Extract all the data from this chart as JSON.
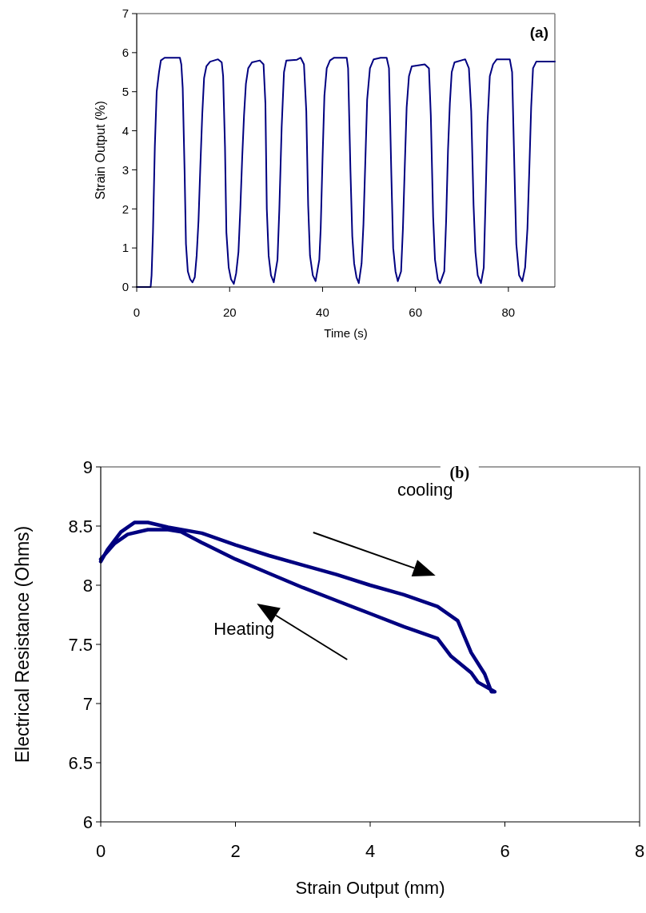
{
  "chart_data": [
    {
      "type": "line",
      "title": "(a)",
      "xlabel": "Time (s)",
      "ylabel": "Strain Output (%)",
      "xlim": [
        0,
        90
      ],
      "xticks": [
        0,
        20,
        40,
        60,
        80
      ],
      "ylim": [
        0,
        7
      ],
      "yticks": [
        0,
        1,
        2,
        3,
        4,
        5,
        6,
        7
      ],
      "grid": false,
      "marker": "none",
      "line_style": "solid",
      "series": [
        {
          "color": "#000080",
          "x": [
            0,
            3.0,
            3.2,
            3.5,
            3.9,
            4.3,
            4.8,
            5.2,
            6,
            9.3,
            9.6,
            9.9,
            10.3,
            10.6,
            11,
            11.5,
            12,
            12.5,
            12.9,
            13.3,
            13.7,
            14.1,
            14.5,
            15,
            15.8,
            17.5,
            18.3,
            18.6,
            19,
            19.3,
            19.8,
            20.3,
            20.9,
            21.4,
            21.9,
            22.3,
            22.7,
            23.1,
            23.5,
            24.0,
            24.8,
            26.5,
            27.3,
            27.7,
            28.0,
            28.4,
            28.9,
            29.5,
            30.3,
            30.7,
            31.2,
            31.7,
            32.2,
            34.5,
            35.3,
            36,
            36.5,
            36.9,
            37.3,
            37.9,
            38.5,
            39.3,
            39.6,
            40.0,
            40.4,
            40.9,
            41.6,
            42.5,
            45.2,
            45.5,
            46.0,
            46.4,
            46.8,
            47.3,
            47.8,
            48.4,
            48.8,
            49.2,
            49.6,
            50.2,
            51,
            52.5,
            53.8,
            54.3,
            54.8,
            55.2,
            55.7,
            56.2,
            56.9,
            57.3,
            57.7,
            58.1,
            58.6,
            59.2,
            62,
            62.9,
            63.3,
            63.8,
            64.2,
            64.8,
            65.3,
            66.2,
            66.6,
            67.0,
            67.4,
            67.8,
            68.4,
            70.7,
            71.5,
            72,
            72.5,
            72.9,
            73.4,
            74.1,
            74.7,
            75.1,
            75.5,
            76,
            76.7,
            77.5,
            80.3,
            80.8,
            81.3,
            81.7,
            82.3,
            83,
            83.6,
            84.1,
            84.5,
            84.9,
            85.3,
            86,
            90
          ],
          "values": [
            0,
            0,
            0.3,
            1.4,
            3.6,
            5.0,
            5.5,
            5.8,
            5.87,
            5.87,
            5.7,
            5.1,
            3.0,
            1.1,
            0.4,
            0.2,
            0.12,
            0.25,
            0.8,
            1.7,
            3.1,
            4.4,
            5.35,
            5.65,
            5.77,
            5.83,
            5.75,
            5.4,
            3.6,
            1.4,
            0.5,
            0.2,
            0.08,
            0.35,
            0.9,
            2.0,
            3.3,
            4.4,
            5.2,
            5.6,
            5.75,
            5.8,
            5.7,
            4.7,
            2.0,
            0.8,
            0.3,
            0.12,
            0.7,
            2.0,
            4.1,
            5.5,
            5.8,
            5.82,
            5.87,
            5.7,
            4.5,
            2.1,
            0.8,
            0.3,
            0.15,
            0.7,
            1.5,
            3.3,
            4.9,
            5.6,
            5.8,
            5.87,
            5.87,
            5.6,
            3.0,
            1.3,
            0.6,
            0.25,
            0.1,
            0.6,
            1.6,
            3.2,
            4.8,
            5.6,
            5.83,
            5.87,
            5.87,
            5.6,
            2.9,
            1.0,
            0.4,
            0.15,
            0.4,
            1.5,
            3.1,
            4.6,
            5.4,
            5.65,
            5.7,
            5.6,
            4.4,
            1.8,
            0.7,
            0.2,
            0.1,
            0.4,
            1.7,
            3.5,
            4.7,
            5.5,
            5.75,
            5.83,
            5.6,
            4.5,
            2.1,
            0.9,
            0.3,
            0.1,
            0.5,
            2.3,
            4.2,
            5.4,
            5.7,
            5.83,
            5.83,
            5.5,
            3.0,
            1.1,
            0.3,
            0.15,
            0.5,
            1.5,
            3.0,
            4.6,
            5.6,
            5.77,
            5.77
          ]
        }
      ]
    },
    {
      "type": "line",
      "title": "(b)",
      "xlabel": "Strain Output (mm)",
      "ylabel": "Electrical Resistance (Ohms)",
      "xlim": [
        0,
        8
      ],
      "xticks": [
        0,
        2,
        4,
        6,
        8
      ],
      "ylim": [
        6,
        9
      ],
      "yticks": [
        6,
        6.5,
        7,
        7.5,
        8,
        8.5,
        9
      ],
      "grid": false,
      "marker": "none",
      "line_style": "solid",
      "annotations": [
        "cooling",
        "Heating"
      ],
      "series": [
        {
          "color": "#000080",
          "x": [
            0,
            0.1,
            0.3,
            0.5,
            0.7,
            1.0,
            1.5,
            2,
            2.5,
            3,
            3.5,
            4,
            4.5,
            5,
            5.3,
            5.5,
            5.7,
            5.8,
            5.85,
            5.6,
            5.5,
            5.2,
            5,
            4.5,
            4,
            3.5,
            3,
            2.5,
            2,
            1.5,
            1.2,
            1,
            0.7,
            0.4,
            0.2,
            0
          ],
          "values": [
            8.2,
            8.3,
            8.45,
            8.53,
            8.53,
            8.49,
            8.44,
            8.34,
            8.25,
            8.17,
            8.09,
            8.0,
            7.92,
            7.82,
            7.7,
            7.43,
            7.25,
            7.1,
            7.1,
            7.18,
            7.26,
            7.4,
            7.55,
            7.65,
            7.76,
            7.87,
            7.98,
            8.1,
            8.22,
            8.36,
            8.45,
            8.47,
            8.47,
            8.43,
            8.35,
            8.22
          ]
        }
      ]
    }
  ]
}
